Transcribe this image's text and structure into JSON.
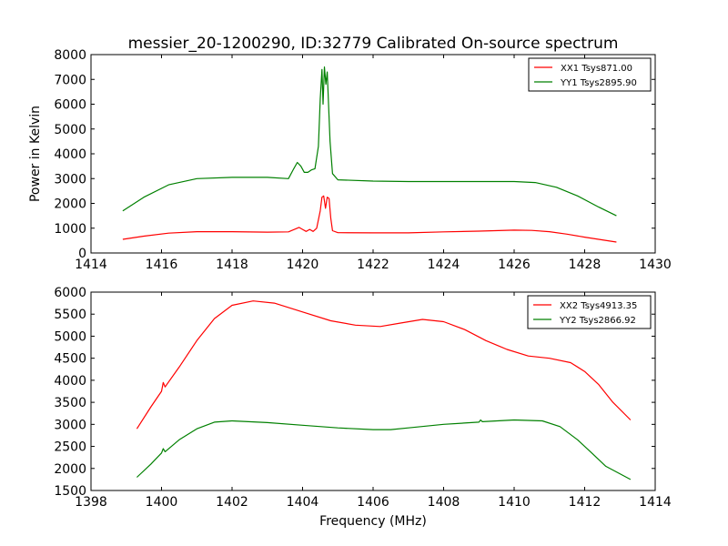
{
  "title": "messier_20-1200290, ID:32779 Calibrated On-source spectrum",
  "colors": {
    "red": "#ff0000",
    "green": "#008000",
    "axes": "#000000",
    "background": "#ffffff"
  },
  "chart_data": [
    {
      "type": "line",
      "ylabel": "Power in Kelvin",
      "xlabel": "",
      "xlim": [
        1414,
        1430
      ],
      "ylim": [
        0,
        8000
      ],
      "xticks": [
        "1414",
        "1416",
        "1418",
        "1420",
        "1422",
        "1424",
        "1426",
        "1428",
        "1430"
      ],
      "yticks": [
        "0",
        "1000",
        "2000",
        "3000",
        "4000",
        "5000",
        "6000",
        "7000",
        "8000"
      ],
      "grid": false,
      "legend": "top-right",
      "series": [
        {
          "name": "XX1 Tsys871.00",
          "color": "#ff0000",
          "x": [
            1414.9,
            1415.5,
            1416.2,
            1417.0,
            1418.0,
            1419.0,
            1419.6,
            1419.9,
            1420.0,
            1420.1,
            1420.2,
            1420.3,
            1420.4,
            1420.5,
            1420.55,
            1420.6,
            1420.65,
            1420.7,
            1420.75,
            1420.8,
            1420.85,
            1421.0,
            1422.0,
            1423.0,
            1424.0,
            1425.0,
            1426.0,
            1426.5,
            1427.0,
            1427.5,
            1428.0,
            1428.9
          ],
          "y": [
            550,
            680,
            800,
            860,
            860,
            840,
            850,
            1030,
            950,
            870,
            950,
            870,
            1000,
            1700,
            2250,
            2300,
            1800,
            2250,
            2200,
            1400,
            900,
            820,
            810,
            810,
            850,
            880,
            920,
            910,
            860,
            760,
            640,
            440
          ]
        },
        {
          "name": "YY1 Tsys2895.90",
          "color": "#008000",
          "x": [
            1414.9,
            1415.5,
            1416.2,
            1417.0,
            1418.0,
            1419.0,
            1419.6,
            1419.75,
            1419.85,
            1419.95,
            1420.05,
            1420.15,
            1420.25,
            1420.35,
            1420.45,
            1420.5,
            1420.55,
            1420.58,
            1420.62,
            1420.66,
            1420.7,
            1420.78,
            1420.85,
            1421.0,
            1422.0,
            1423.0,
            1424.0,
            1425.0,
            1426.0,
            1426.6,
            1427.2,
            1427.8,
            1428.4,
            1428.9
          ],
          "y": [
            1700,
            2250,
            2750,
            3000,
            3050,
            3050,
            3000,
            3400,
            3650,
            3500,
            3250,
            3250,
            3350,
            3400,
            4300,
            6200,
            7400,
            6000,
            7500,
            6800,
            7300,
            4500,
            3200,
            2950,
            2900,
            2880,
            2880,
            2880,
            2880,
            2840,
            2650,
            2300,
            1850,
            1500
          ]
        }
      ]
    },
    {
      "type": "line",
      "xlabel": "Frequency (MHz)",
      "ylabel": "",
      "xlim": [
        1398,
        1414
      ],
      "ylim": [
        1500,
        6000
      ],
      "xticks": [
        "1398",
        "1400",
        "1402",
        "1404",
        "1406",
        "1408",
        "1410",
        "1412",
        "1414"
      ],
      "yticks": [
        "1500",
        "2000",
        "2500",
        "3000",
        "3500",
        "4000",
        "4500",
        "5000",
        "5500",
        "6000"
      ],
      "grid": false,
      "legend": "top-right",
      "series": [
        {
          "name": "XX2 Tsys4913.35",
          "color": "#ff0000",
          "x": [
            1399.3,
            1399.7,
            1400.0,
            1400.05,
            1400.1,
            1400.5,
            1401.0,
            1401.5,
            1402.0,
            1402.6,
            1403.2,
            1404.0,
            1404.8,
            1405.5,
            1406.2,
            1406.8,
            1407.4,
            1408.0,
            1408.6,
            1409.2,
            1409.8,
            1410.4,
            1411.0,
            1411.6,
            1412.0,
            1412.4,
            1412.8,
            1413.3
          ],
          "y": [
            2900,
            3400,
            3750,
            3950,
            3850,
            4300,
            4900,
            5400,
            5700,
            5800,
            5750,
            5550,
            5350,
            5250,
            5220,
            5300,
            5380,
            5330,
            5150,
            4900,
            4700,
            4550,
            4500,
            4400,
            4200,
            3900,
            3500,
            3100
          ]
        },
        {
          "name": "YY2 Tsys2866.92",
          "color": "#008000",
          "x": [
            1399.3,
            1399.7,
            1400.0,
            1400.05,
            1400.1,
            1400.5,
            1401.0,
            1401.5,
            1402.0,
            1403.0,
            1404.0,
            1405.0,
            1406.0,
            1406.5,
            1407.0,
            1408.0,
            1409.0,
            1409.05,
            1409.1,
            1410.0,
            1410.8,
            1411.3,
            1411.8,
            1412.2,
            1412.6,
            1413.3
          ],
          "y": [
            1800,
            2100,
            2350,
            2450,
            2380,
            2650,
            2900,
            3050,
            3080,
            3040,
            2980,
            2920,
            2880,
            2880,
            2920,
            3000,
            3050,
            3100,
            3060,
            3100,
            3080,
            2950,
            2650,
            2350,
            2050,
            1750
          ]
        }
      ]
    }
  ]
}
